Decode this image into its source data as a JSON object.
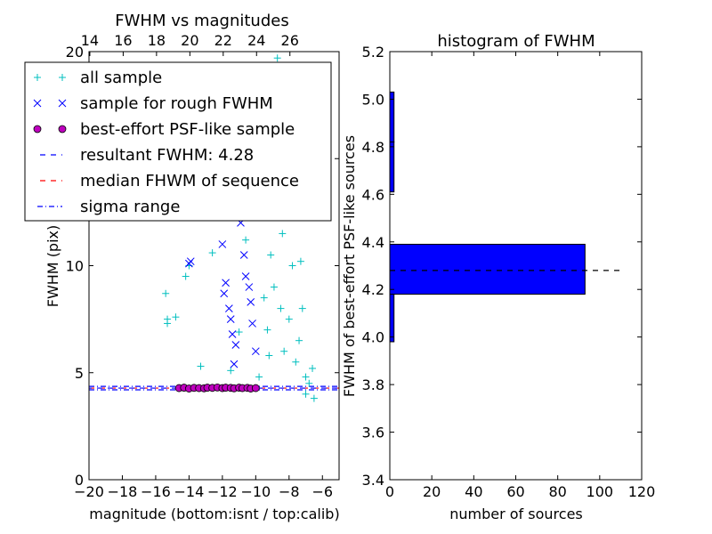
{
  "chart_data": [
    {
      "type": "scatter",
      "title": "FWHM vs magnitudes",
      "xlabel": "magnitude (bottom:isnt / top:calib)",
      "ylabel": "FWHM (pix)",
      "xlim": [
        -20,
        -5
      ],
      "ylim": [
        0,
        20
      ],
      "x_ticks": [
        -20,
        -18,
        -16,
        -14,
        -12,
        -10,
        -8,
        -6
      ],
      "x_tick_labels": [
        "−20",
        "−18",
        "−16",
        "−14",
        "−12",
        "−10",
        "−8",
        "−6"
      ],
      "y_ticks": [
        0,
        5,
        10,
        15,
        20
      ],
      "y_tick_labels": [
        "0",
        "5",
        "10",
        "15",
        "20"
      ],
      "top_axis": {
        "ticks": [
          14,
          16,
          18,
          20,
          22,
          24,
          26
        ],
        "tick_labels": [
          "14",
          "16",
          "18",
          "20",
          "22",
          "24",
          "26"
        ],
        "offset": 33.95
      },
      "legend_position": "top-left",
      "colors": {
        "all_sample": "#00bfbf",
        "rough_sample": "#0000ff",
        "best_sample": "#bf00bf",
        "resultant_line": "#0000ff",
        "median_line": "#ff0000",
        "sigma_line": "#0000ff"
      },
      "reference_lines": {
        "resultant_fwhm": 4.28,
        "median_fwhm": 4.28,
        "sigma_range": [
          4.2,
          4.36
        ]
      },
      "series": [
        {
          "name": "all sample",
          "marker": "+",
          "color": "#00bfbf",
          "x": [
            -15.4,
            -15.3,
            -15.3,
            -14.8,
            -14.2,
            -14.0,
            -13.3,
            -12.6,
            -11.5,
            -11.0,
            -10.6,
            -10.0,
            -9.5,
            -9.3,
            -9.1,
            -8.9,
            -8.8,
            -8.7,
            -8.5,
            -8.4,
            -8.3,
            -8.2,
            -8.0,
            -7.8,
            -7.6,
            -7.4,
            -7.2,
            -7.0,
            -6.8,
            -6.6,
            -7.3,
            -7.0,
            -6.5,
            -9.8,
            -9.2,
            -8.6,
            -8.1
          ],
          "y": [
            8.7,
            7.5,
            7.3,
            7.6,
            9.5,
            10.0,
            5.3,
            10.6,
            5.1,
            6.9,
            11.2,
            13.0,
            8.5,
            7.0,
            10.5,
            9.0,
            16.0,
            19.7,
            8.0,
            11.5,
            6.0,
            18.5,
            7.5,
            10.0,
            5.5,
            6.5,
            8.0,
            4.8,
            4.5,
            5.2,
            10.2,
            4.0,
            3.8,
            4.8,
            5.8,
            12.5,
            14.0
          ]
        },
        {
          "name": "sample for rough FWHM",
          "marker": "x",
          "color": "#0000ff",
          "x": [
            -14.0,
            -13.9,
            -12.0,
            -11.9,
            -11.6,
            -11.5,
            -11.4,
            -11.2,
            -11.0,
            -10.8,
            -10.7,
            -10.6,
            -10.4,
            -10.3,
            -10.2,
            -10.0,
            -11.8,
            -11.3,
            -10.9
          ],
          "y": [
            10.1,
            10.2,
            11.0,
            8.7,
            8.0,
            7.5,
            6.8,
            6.3,
            13.0,
            12.7,
            10.5,
            9.5,
            9.0,
            8.3,
            7.3,
            6.0,
            9.2,
            5.4,
            12.0
          ]
        },
        {
          "name": "best-effort PSF-like sample",
          "marker": "o",
          "color": "#bf00bf",
          "x": [
            -14.6,
            -14.3,
            -14.0,
            -13.7,
            -13.4,
            -13.1,
            -12.9,
            -12.6,
            -12.3,
            -12.0,
            -11.8,
            -11.5,
            -11.3,
            -11.0,
            -10.8,
            -10.5,
            -10.3,
            -10.0
          ],
          "y": [
            4.28,
            4.3,
            4.26,
            4.29,
            4.28,
            4.27,
            4.3,
            4.29,
            4.31,
            4.28,
            4.3,
            4.29,
            4.27,
            4.3,
            4.28,
            4.29,
            4.26,
            4.28
          ]
        }
      ],
      "legend": [
        {
          "label": "all sample",
          "marker": "+",
          "color": "#00bfbf"
        },
        {
          "label": "sample for rough FWHM",
          "marker": "x",
          "color": "#0000ff"
        },
        {
          "label": "best-effort PSF-like sample",
          "marker": "o",
          "color": "#bf00bf"
        },
        {
          "label": "resultant FWHM: 4.28",
          "marker": "dashed",
          "color": "#0000ff"
        },
        {
          "label": "median FHWM of sequence",
          "marker": "dashed",
          "color": "#ff0000"
        },
        {
          "label": "sigma range",
          "marker": "dashdot",
          "color": "#0000ff"
        }
      ]
    },
    {
      "type": "bar",
      "orientation": "horizontal",
      "title": "histogram of FWHM",
      "xlabel": "number of sources",
      "ylabel": "FWHM of best-effort PSF-like sources",
      "xlim": [
        0,
        120
      ],
      "ylim": [
        3.4,
        5.2
      ],
      "x_ticks": [
        0,
        20,
        40,
        60,
        80,
        100,
        120
      ],
      "x_tick_labels": [
        "0",
        "20",
        "40",
        "60",
        "80",
        "100",
        "120"
      ],
      "y_ticks": [
        3.4,
        3.6,
        3.8,
        4.0,
        4.2,
        4.4,
        4.6,
        4.8,
        5.0,
        5.2
      ],
      "y_tick_labels": [
        "3.4",
        "3.6",
        "3.8",
        "4.0",
        "4.2",
        "4.4",
        "4.6",
        "4.8",
        "5.0",
        "5.2"
      ],
      "bar_color": "#0000ff",
      "bins": [
        {
          "from": 3.98,
          "to": 4.18,
          "count": 2
        },
        {
          "from": 4.18,
          "to": 4.39,
          "count": 93
        },
        {
          "from": 4.39,
          "to": 4.61,
          "count": 0
        },
        {
          "from": 4.61,
          "to": 4.82,
          "count": 2
        },
        {
          "from": 4.82,
          "to": 5.03,
          "count": 2
        }
      ],
      "reference_line": {
        "value": 4.28,
        "x_range": [
          0,
          110
        ],
        "style": "dashed",
        "color": "#000000"
      }
    }
  ]
}
